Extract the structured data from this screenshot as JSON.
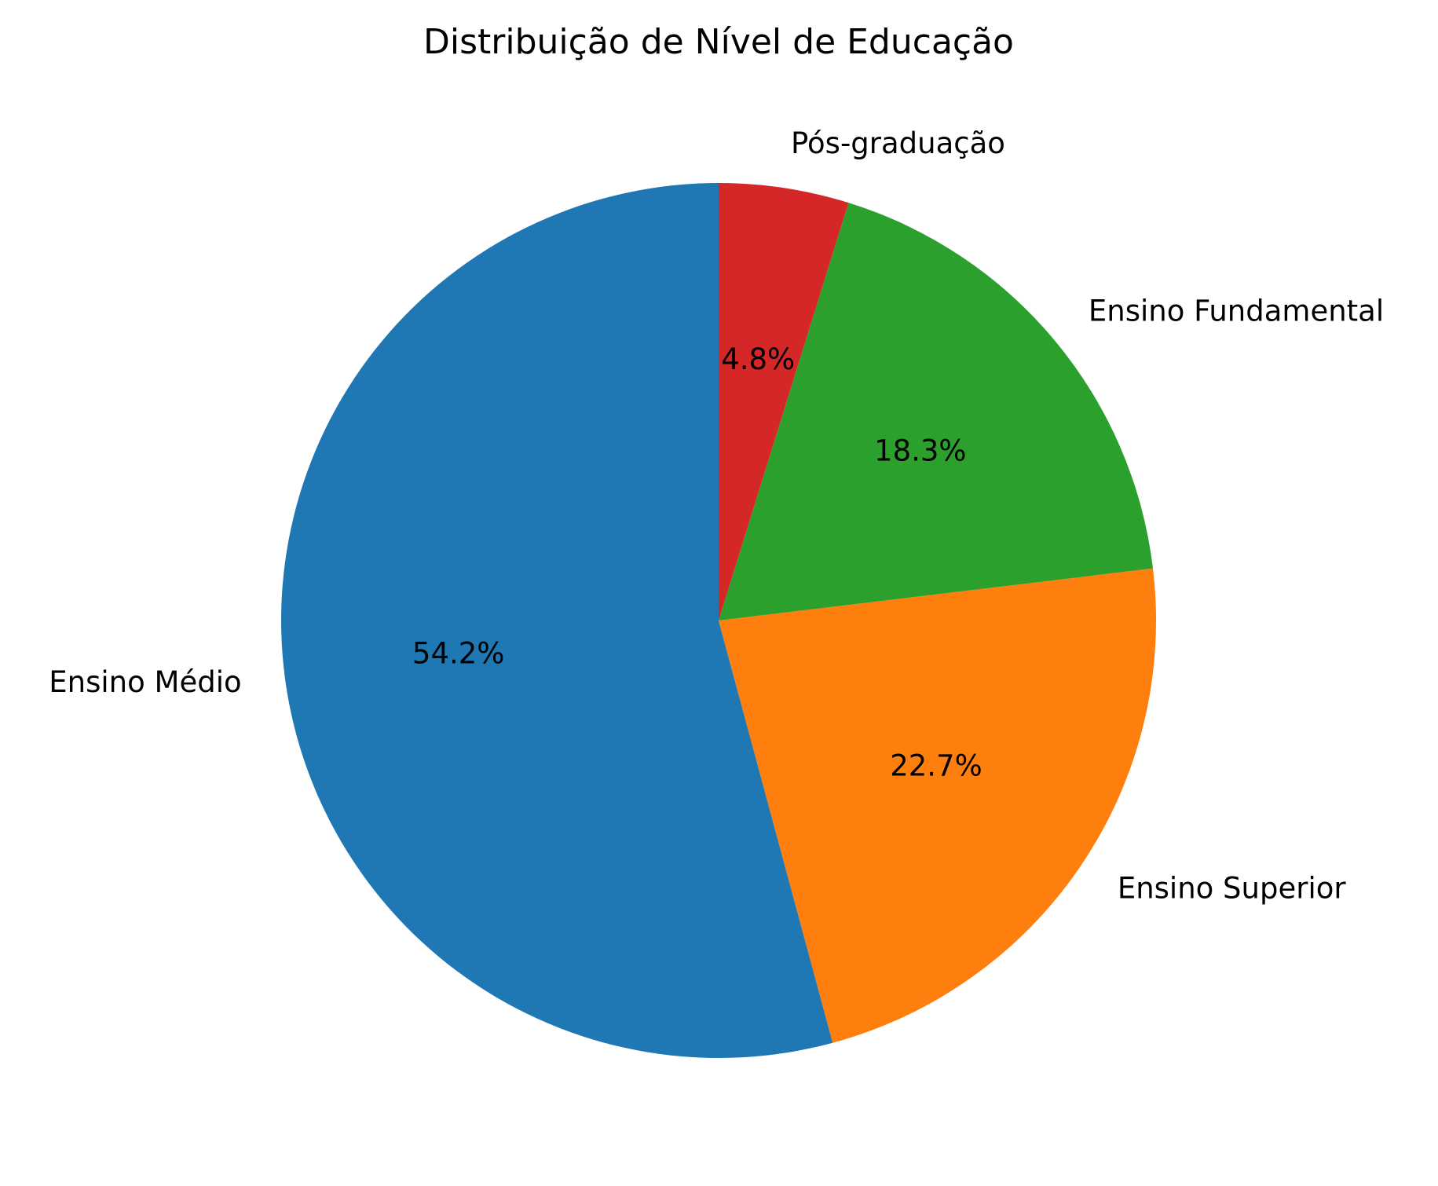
{
  "chart_data": {
    "type": "pie",
    "title": "Distribuição de Nível de Educação",
    "categories": [
      "Ensino Médio",
      "Ensino Superior",
      "Ensino Fundamental",
      "Pós-graduação"
    ],
    "values": [
      54.2,
      22.7,
      18.3,
      4.8
    ],
    "value_labels": [
      "54.2%",
      "22.7%",
      "18.3%",
      "4.8%"
    ],
    "colors": [
      "#1f77b4",
      "#ff7f0e",
      "#2ca02c",
      "#d62728"
    ],
    "start_angle_deg": 90,
    "direction": "counterclockwise"
  }
}
